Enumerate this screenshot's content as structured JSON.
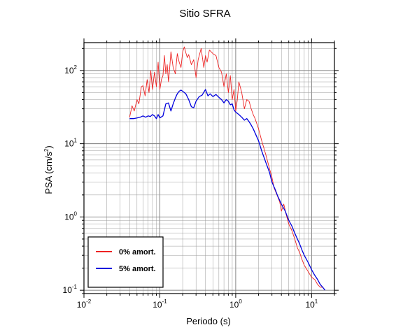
{
  "chart_data": {
    "type": "line",
    "title": "Sitio SFRA",
    "xlabel": "Periodo (s)",
    "ylabel_base": "PSA (cm/s",
    "ylabel_exp": "2",
    "ylabel_close": ")",
    "x_scale": "log",
    "y_scale": "log",
    "xlim": [
      0.01,
      20
    ],
    "ylim": [
      0.09,
      240
    ],
    "grid": true,
    "legend_position": "bottom-left",
    "x_ticks": [
      {
        "value": 0.01,
        "base": "10",
        "exp": "-2"
      },
      {
        "value": 0.1,
        "base": "10",
        "exp": "-1"
      },
      {
        "value": 1,
        "base": "10",
        "exp": "0"
      },
      {
        "value": 10,
        "base": "10",
        "exp": "1"
      }
    ],
    "y_ticks": [
      {
        "value": 0.1,
        "base": "10",
        "exp": "-1"
      },
      {
        "value": 1,
        "base": "10",
        "exp": "0"
      },
      {
        "value": 10,
        "base": "10",
        "exp": "1"
      },
      {
        "value": 100,
        "base": "10",
        "exp": "2"
      }
    ],
    "series": [
      {
        "name": "0% amort.",
        "color": "#ee2222",
        "x": [
          0.04,
          0.043,
          0.046,
          0.05,
          0.053,
          0.057,
          0.06,
          0.064,
          0.068,
          0.072,
          0.076,
          0.08,
          0.085,
          0.09,
          0.095,
          0.1,
          0.105,
          0.11,
          0.115,
          0.12,
          0.125,
          0.13,
          0.135,
          0.14,
          0.15,
          0.16,
          0.17,
          0.18,
          0.19,
          0.2,
          0.21,
          0.22,
          0.23,
          0.24,
          0.26,
          0.28,
          0.3,
          0.32,
          0.35,
          0.38,
          0.4,
          0.42,
          0.45,
          0.5,
          0.55,
          0.6,
          0.65,
          0.7,
          0.75,
          0.8,
          0.85,
          0.9,
          0.95,
          1.0,
          1.05,
          1.1,
          1.2,
          1.3,
          1.4,
          1.5,
          1.6,
          1.7,
          1.8,
          2.0,
          2.2,
          2.5,
          2.8,
          3.0,
          3.2,
          3.5,
          3.8,
          4.0,
          4.3,
          4.6,
          5.0,
          5.5,
          6.0,
          6.5,
          7.0,
          7.5,
          8.0,
          9.0,
          10.0,
          11.0,
          12.0,
          13.0,
          14.0,
          15.0
        ],
        "y": [
          23,
          33,
          28,
          40,
          35,
          60,
          62,
          45,
          75,
          50,
          100,
          55,
          95,
          60,
          130,
          55,
          75,
          85,
          160,
          90,
          120,
          70,
          110,
          180,
          110,
          90,
          170,
          130,
          110,
          180,
          210,
          175,
          150,
          165,
          120,
          140,
          80,
          140,
          200,
          110,
          160,
          130,
          190,
          170,
          160,
          110,
          95,
          60,
          90,
          50,
          85,
          40,
          55,
          28,
          40,
          70,
          50,
          30,
          40,
          38,
          30,
          25,
          22,
          16,
          11,
          7,
          4.5,
          3.5,
          2.5,
          2,
          1.6,
          1.2,
          1.5,
          1.1,
          0.8,
          0.65,
          0.5,
          0.38,
          0.32,
          0.26,
          0.22,
          0.18,
          0.15,
          0.14,
          0.12,
          0.11,
          0.11,
          0.1
        ]
      },
      {
        "name": "5% amort.",
        "color": "#0000dd",
        "x": [
          0.04,
          0.045,
          0.05,
          0.055,
          0.06,
          0.065,
          0.07,
          0.075,
          0.08,
          0.085,
          0.09,
          0.095,
          0.1,
          0.11,
          0.12,
          0.13,
          0.14,
          0.15,
          0.16,
          0.17,
          0.18,
          0.19,
          0.2,
          0.21,
          0.22,
          0.24,
          0.26,
          0.28,
          0.3,
          0.33,
          0.36,
          0.4,
          0.43,
          0.46,
          0.5,
          0.55,
          0.6,
          0.65,
          0.7,
          0.75,
          0.8,
          0.85,
          0.9,
          0.95,
          1.0,
          1.1,
          1.2,
          1.3,
          1.4,
          1.5,
          1.6,
          1.7,
          1.8,
          2.0,
          2.2,
          2.5,
          2.8,
          3.0,
          3.3,
          3.6,
          4.0,
          4.5,
          5.0,
          5.5,
          6.0,
          6.5,
          7.0,
          7.5,
          8.0,
          9.0,
          10.0,
          11.0,
          12.0,
          13.0,
          14.0,
          15.0
        ],
        "y": [
          22,
          22,
          22.5,
          23,
          24,
          23,
          24,
          23.5,
          25,
          24,
          22,
          25,
          22.5,
          24,
          35,
          36,
          28,
          35,
          42,
          48,
          52,
          54,
          52,
          50,
          48,
          40,
          32,
          31,
          38,
          44,
          46,
          55,
          45,
          48,
          44,
          47,
          43,
          40,
          36,
          40,
          38,
          34,
          35,
          29,
          27,
          25,
          23,
          21,
          22,
          20,
          18,
          16,
          14,
          11,
          8,
          5.5,
          4,
          3,
          2.4,
          1.9,
          1.5,
          1.2,
          0.9,
          0.75,
          0.6,
          0.5,
          0.42,
          0.35,
          0.3,
          0.24,
          0.19,
          0.16,
          0.14,
          0.12,
          0.11,
          0.1
        ]
      }
    ]
  }
}
